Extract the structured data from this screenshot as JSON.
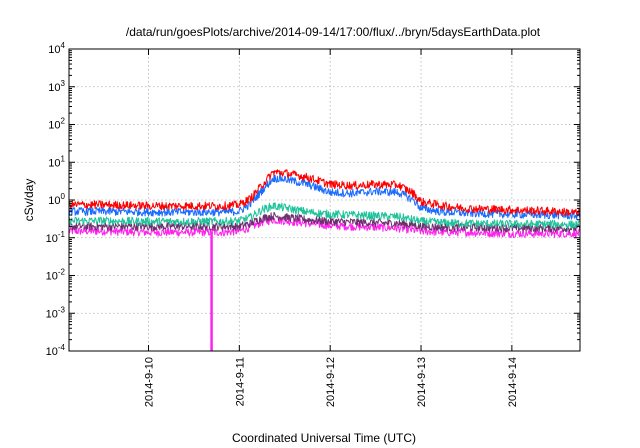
{
  "chart_data": {
    "type": "line",
    "title": "/data/run/goesPlots/archive/2014-09-14/17:00/flux/../bryn/5daysEarthData.plot",
    "xlabel": "Coordinated Universal Time (UTC)",
    "ylabel": "cSv/day",
    "yscale": "log",
    "ylim": [
      0.0001,
      10000
    ],
    "y_ticks": [
      {
        "base": "10",
        "exp": "-4",
        "value": 0.0001
      },
      {
        "base": "10",
        "exp": "-3",
        "value": 0.001
      },
      {
        "base": "10",
        "exp": "-2",
        "value": 0.01
      },
      {
        "base": "10",
        "exp": "-1",
        "value": 0.1
      },
      {
        "base": "10",
        "exp": "0",
        "value": 1
      },
      {
        "base": "10",
        "exp": "1",
        "value": 10
      },
      {
        "base": "10",
        "exp": "2",
        "value": 100
      },
      {
        "base": "10",
        "exp": "3",
        "value": 1000
      },
      {
        "base": "10",
        "exp": "4",
        "value": 10000
      }
    ],
    "xlim": [
      "2014-09-09 03:00",
      "2014-09-14 18:00"
    ],
    "x_ticks": [
      "2014-9-10",
      "2014-9-11",
      "2014-9-12",
      "2014-9-13",
      "2014-9-14"
    ],
    "grid": true,
    "series": [
      {
        "color": "#ff0000",
        "x": [
          "2014-09-09 03:00",
          "2014-09-09 12:00",
          "2014-09-10 00:00",
          "2014-09-10 12:00",
          "2014-09-10 20:00",
          "2014-09-11 00:00",
          "2014-09-11 03:00",
          "2014-09-11 06:00",
          "2014-09-11 09:00",
          "2014-09-11 12:00",
          "2014-09-11 18:00",
          "2014-09-12 00:00",
          "2014-09-12 06:00",
          "2014-09-12 12:00",
          "2014-09-12 18:00",
          "2014-09-12 22:00",
          "2014-09-13 00:00",
          "2014-09-13 06:00",
          "2014-09-13 12:00",
          "2014-09-14 00:00",
          "2014-09-14 12:00",
          "2014-09-14 18:00"
        ],
        "values": [
          0.75,
          0.75,
          0.7,
          0.7,
          0.7,
          0.75,
          1.1,
          2.5,
          5.5,
          5.2,
          4.0,
          2.6,
          2.4,
          2.6,
          2.5,
          1.5,
          0.9,
          0.7,
          0.6,
          0.55,
          0.5,
          0.45
        ]
      },
      {
        "color": "#1a6cff",
        "x": [
          "2014-09-09 03:00",
          "2014-09-09 12:00",
          "2014-09-10 00:00",
          "2014-09-10 12:00",
          "2014-09-10 20:00",
          "2014-09-11 00:00",
          "2014-09-11 03:00",
          "2014-09-11 06:00",
          "2014-09-11 09:00",
          "2014-09-11 12:00",
          "2014-09-11 18:00",
          "2014-09-12 00:00",
          "2014-09-12 06:00",
          "2014-09-12 12:00",
          "2014-09-12 18:00",
          "2014-09-12 22:00",
          "2014-09-13 00:00",
          "2014-09-13 06:00",
          "2014-09-13 12:00",
          "2014-09-14 00:00",
          "2014-09-14 12:00",
          "2014-09-14 18:00"
        ],
        "values": [
          0.5,
          0.5,
          0.48,
          0.48,
          0.48,
          0.5,
          0.8,
          1.8,
          3.8,
          3.6,
          2.6,
          1.6,
          1.5,
          1.7,
          1.6,
          1.0,
          0.6,
          0.48,
          0.45,
          0.42,
          0.4,
          0.38
        ]
      },
      {
        "color": "#1fc39a",
        "x": [
          "2014-09-09 03:00",
          "2014-09-09 12:00",
          "2014-09-10 00:00",
          "2014-09-10 12:00",
          "2014-09-10 20:00",
          "2014-09-11 00:00",
          "2014-09-11 03:00",
          "2014-09-11 06:00",
          "2014-09-11 09:00",
          "2014-09-11 12:00",
          "2014-09-11 18:00",
          "2014-09-12 00:00",
          "2014-09-12 06:00",
          "2014-09-12 12:00",
          "2014-09-12 18:00",
          "2014-09-12 22:00",
          "2014-09-13 00:00",
          "2014-09-13 06:00",
          "2014-09-13 12:00",
          "2014-09-14 00:00",
          "2014-09-14 12:00",
          "2014-09-14 18:00"
        ],
        "values": [
          0.28,
          0.28,
          0.27,
          0.27,
          0.27,
          0.28,
          0.35,
          0.55,
          0.7,
          0.62,
          0.48,
          0.42,
          0.4,
          0.38,
          0.36,
          0.3,
          0.27,
          0.25,
          0.24,
          0.23,
          0.23,
          0.22
        ]
      },
      {
        "color": "#6f2f6f",
        "x": [
          "2014-09-09 03:00",
          "2014-09-09 12:00",
          "2014-09-10 00:00",
          "2014-09-10 12:00",
          "2014-09-10 20:00",
          "2014-09-11 00:00",
          "2014-09-11 03:00",
          "2014-09-11 06:00",
          "2014-09-11 09:00",
          "2014-09-11 12:00",
          "2014-09-11 18:00",
          "2014-09-12 00:00",
          "2014-09-12 06:00",
          "2014-09-12 12:00",
          "2014-09-12 18:00",
          "2014-09-12 22:00",
          "2014-09-13 00:00",
          "2014-09-13 06:00",
          "2014-09-13 12:00",
          "2014-09-14 00:00",
          "2014-09-14 12:00",
          "2014-09-14 18:00"
        ],
        "values": [
          0.2,
          0.2,
          0.2,
          0.2,
          0.2,
          0.2,
          0.24,
          0.33,
          0.38,
          0.35,
          0.3,
          0.27,
          0.26,
          0.25,
          0.24,
          0.22,
          0.2,
          0.19,
          0.19,
          0.18,
          0.18,
          0.18
        ]
      },
      {
        "color": "#ff22ee",
        "x": [
          "2014-09-09 03:00",
          "2014-09-09 12:00",
          "2014-09-10 00:00",
          "2014-09-10 12:00",
          "2014-09-10 20:00",
          "2014-09-11 00:00",
          "2014-09-11 03:00",
          "2014-09-11 06:00",
          "2014-09-11 09:00",
          "2014-09-11 12:00",
          "2014-09-11 18:00",
          "2014-09-12 00:00",
          "2014-09-12 06:00",
          "2014-09-12 12:00",
          "2014-09-12 18:00",
          "2014-09-12 22:00",
          "2014-09-13 00:00",
          "2014-09-13 06:00",
          "2014-09-13 12:00",
          "2014-09-14 00:00",
          "2014-09-14 12:00",
          "2014-09-14 18:00"
        ],
        "values": [
          0.15,
          0.15,
          0.14,
          0.14,
          0.14,
          0.15,
          0.19,
          0.26,
          0.3,
          0.28,
          0.24,
          0.21,
          0.2,
          0.19,
          0.18,
          0.16,
          0.15,
          0.14,
          0.14,
          0.13,
          0.13,
          0.13
        ],
        "spike": {
          "x": "2014-09-10 16:40",
          "value": 0.0001
        }
      }
    ]
  }
}
